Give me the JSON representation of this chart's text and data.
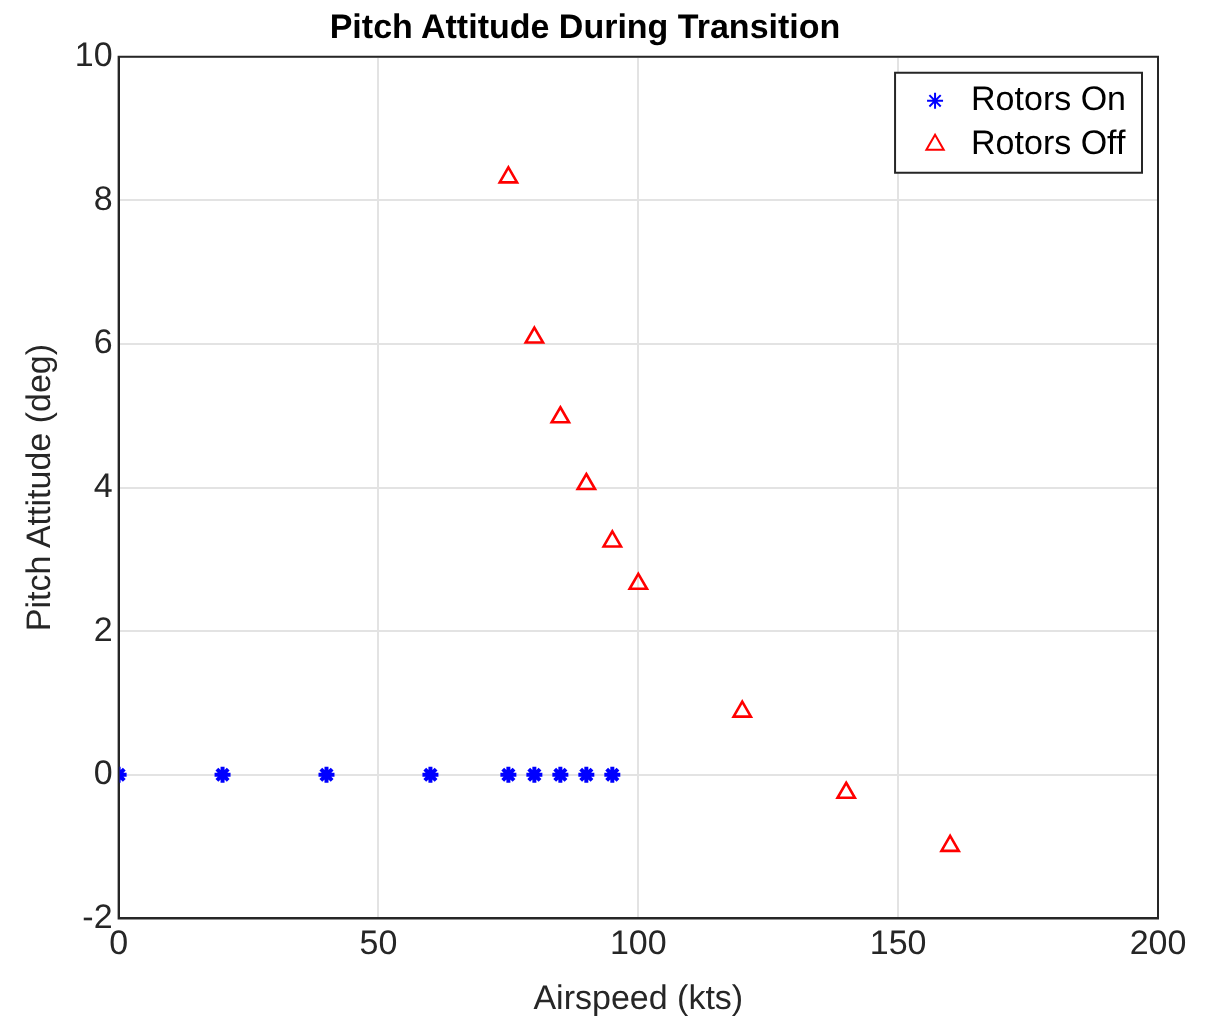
{
  "chart_data": {
    "type": "scatter",
    "title": "Pitch Attitude During Transition",
    "xlabel": "Airspeed (kts)",
    "ylabel": "Pitch Attitude (deg)",
    "xlim": [
      0,
      200
    ],
    "xticks": [
      0,
      50,
      100,
      150,
      200
    ],
    "ylim": [
      -2,
      10
    ],
    "yticks": [
      -2,
      0,
      2,
      4,
      6,
      8,
      10
    ],
    "grid": true,
    "legend": "top right",
    "series": [
      {
        "name": "Rotors On",
        "color": "#0000ff",
        "marker": "cross",
        "x": [
          0,
          20,
          40,
          60,
          75,
          80,
          85,
          90,
          95
        ],
        "values": [
          0,
          0,
          0,
          0,
          0,
          0,
          0,
          0,
          0
        ]
      },
      {
        "name": "Rotors Off",
        "color": "#ff0000",
        "marker": "triangle",
        "x": [
          75,
          80,
          85,
          90,
          95,
          100,
          120,
          140,
          160
        ],
        "values": [
          8.32,
          6.09,
          4.98,
          4.05,
          3.25,
          2.66,
          0.88,
          -0.25,
          -0.99
        ]
      }
    ]
  }
}
